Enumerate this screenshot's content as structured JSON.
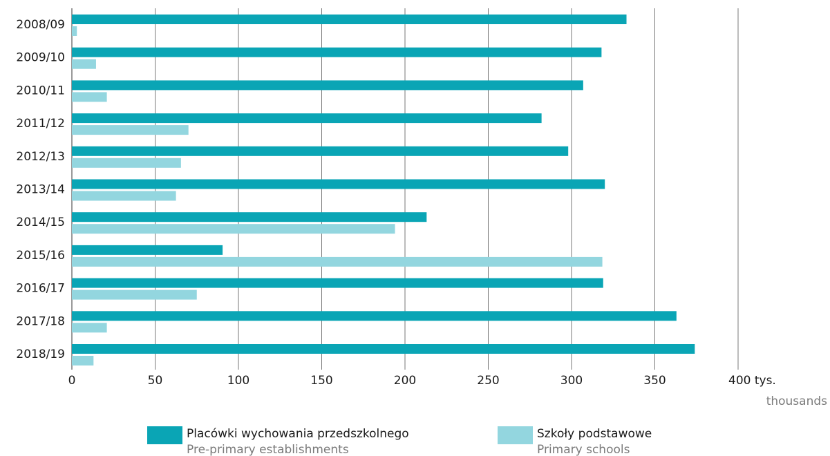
{
  "chart_data": {
    "type": "bar",
    "orientation": "horizontal",
    "categories": [
      "2008/09",
      "2009/10",
      "2010/11",
      "2011/12",
      "2012/13",
      "2013/14",
      "2014/15",
      "2015/16",
      "2016/17",
      "2017/18",
      "2018/19"
    ],
    "series": [
      {
        "name": "Placówki wychowania przedszkolnego",
        "name_en": "Pre-primary establishments",
        "color": "#0aa5b5",
        "values": [
          333,
          318,
          307,
          282,
          298,
          320,
          213,
          90.5,
          319,
          363,
          374
        ]
      },
      {
        "name": "Szkoły podstawowe",
        "name_en": "Primary schools",
        "color": "#93d6df",
        "values": [
          3,
          14.5,
          21,
          70,
          65.5,
          62.5,
          194,
          318.5,
          75,
          21,
          13
        ]
      }
    ],
    "xlim": [
      0,
      400
    ],
    "xticks": [
      0,
      50,
      100,
      150,
      200,
      250,
      300,
      350,
      {
        "value": 400,
        "label": "400 tys."
      }
    ],
    "xlabel": "thousands",
    "grid": true
  }
}
